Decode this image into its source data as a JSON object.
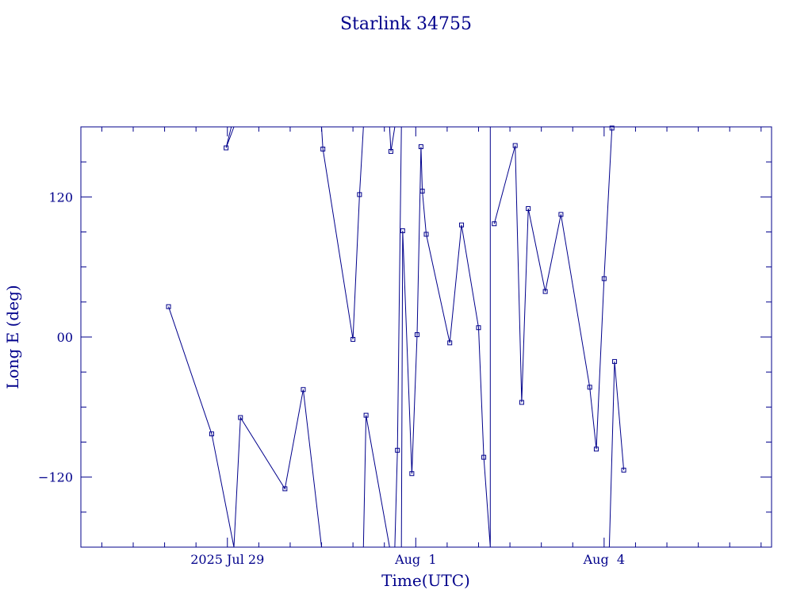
{
  "colors": {
    "ink": "#00008b",
    "background": "#ffffff"
  },
  "chart_data": {
    "type": "line",
    "title": "Starlink 34755",
    "xlabel": "Time(UTC)",
    "ylabel": "Long E (deg)",
    "xlim": [
      "2025-07-26T16:00",
      "2025-08-06T16:00"
    ],
    "ylim": [
      -180,
      180
    ],
    "grid": false,
    "legend": "none",
    "x_major_ticks": [
      {
        "date": "2025-07-29T00:00",
        "label": "2025 Jul 29"
      },
      {
        "date": "2025-08-01T00:00",
        "label": "Aug  1"
      },
      {
        "date": "2025-08-04T00:00",
        "label": "Aug  4"
      }
    ],
    "x_minor_tick_hours": 12,
    "y_ticks": [
      {
        "value": 120,
        "label": "120"
      },
      {
        "value": 0,
        "label": "00"
      },
      {
        "value": -120,
        "label": "−120"
      }
    ],
    "y_minor_step": 30,
    "series": [
      {
        "points": [
          [
            "2025-07-28T01:30",
            26
          ],
          [
            "2025-07-28T18:00",
            -83
          ],
          [
            "2025-07-29T02:30",
            -180
          ],
          [
            "2025-07-29T02:30",
            180
          ],
          [
            "2025-07-28T23:30",
            162
          ],
          [
            "2025-07-29T01:30",
            180
          ],
          [
            "2025-07-29T02:30",
            -180
          ],
          [
            "2025-07-29T05:00",
            -69
          ],
          [
            "2025-07-29T22:00",
            -130
          ],
          [
            "2025-07-30T05:00",
            -45
          ],
          [
            "2025-07-30T12:00",
            -180
          ],
          [
            "2025-07-30T12:00",
            180
          ],
          [
            "2025-07-30T12:30",
            161
          ],
          [
            "2025-07-31T00:00",
            -2
          ],
          [
            "2025-07-31T02:30",
            122
          ],
          [
            "2025-07-31T04:00",
            180
          ],
          [
            "2025-07-31T04:00",
            -180
          ],
          [
            "2025-07-31T05:00",
            -67
          ],
          [
            "2025-07-31T14:00",
            -180
          ],
          [
            "2025-07-31T14:00",
            180
          ],
          [
            "2025-07-31T14:30",
            159
          ],
          [
            "2025-07-31T16:00",
            180
          ],
          [
            "2025-07-31T16:00",
            -180
          ],
          [
            "2025-07-31T17:00",
            -97
          ],
          [
            "2025-07-31T18:30",
            180
          ],
          [
            "2025-07-31T18:30",
            -180
          ],
          [
            "2025-07-31T19:00",
            91
          ],
          [
            "2025-07-31T22:30",
            -117
          ],
          [
            "2025-08-01T00:30",
            2
          ],
          [
            "2025-08-01T02:00",
            163
          ],
          [
            "2025-08-01T02:30",
            125
          ],
          [
            "2025-08-01T04:00",
            88
          ],
          [
            "2025-08-01T13:00",
            -5
          ],
          [
            "2025-08-01T17:30",
            96
          ],
          [
            "2025-08-02T00:00",
            8
          ],
          [
            "2025-08-02T02:00",
            -103
          ],
          [
            "2025-08-02T04:30",
            -180
          ],
          [
            "2025-08-02T04:30",
            180
          ],
          [
            "2025-08-02T06:00",
            97
          ],
          [
            "2025-08-02T14:00",
            164
          ],
          [
            "2025-08-02T16:30",
            -56
          ],
          [
            "2025-08-02T19:00",
            110
          ],
          [
            "2025-08-03T01:30",
            39
          ],
          [
            "2025-08-03T07:30",
            105
          ],
          [
            "2025-08-03T18:30",
            -43
          ],
          [
            "2025-08-03T21:00",
            -96
          ],
          [
            "2025-08-04T00:00",
            50
          ],
          [
            "2025-08-04T03:00",
            179
          ],
          [
            "2025-08-04T02:00",
            -180
          ],
          [
            "2025-08-04T04:00",
            -21
          ],
          [
            "2025-08-04T07:30",
            -114
          ]
        ],
        "break_before": [
          3,
          6,
          11,
          16,
          19,
          22,
          25,
          38,
          48
        ]
      }
    ]
  }
}
